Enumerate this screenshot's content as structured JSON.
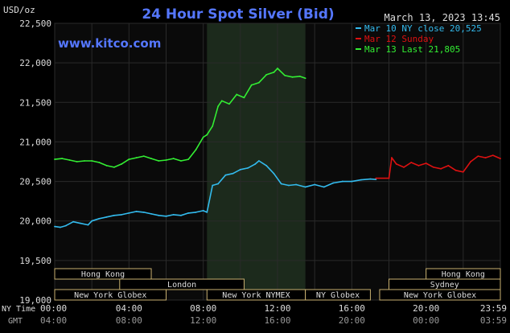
{
  "chart_data": {
    "type": "line",
    "title": "24 Hour Spot Silver (Bid)",
    "brand": "www.kitco.com",
    "timestamp": "March 13, 2023 13:45",
    "y_axis_label": "USD/oz",
    "ylim": [
      19.0,
      22.5
    ],
    "xlim": [
      0,
      24
    ],
    "grid": true,
    "legend_position": "top-right",
    "y_ticks": [
      {
        "value": 22.5,
        "label": "22,500"
      },
      {
        "value": 22.0,
        "label": "22,000"
      },
      {
        "value": 21.5,
        "label": "21,500"
      },
      {
        "value": 21.0,
        "label": "21,000"
      },
      {
        "value": 20.5,
        "label": "20,500"
      },
      {
        "value": 20.0,
        "label": "20,000"
      },
      {
        "value": 19.5,
        "label": "19,500"
      },
      {
        "value": 19.0,
        "label": "19,000"
      }
    ],
    "x_ticks_ny": [
      {
        "value": 0,
        "label": "00:00"
      },
      {
        "value": 4,
        "label": "04:00"
      },
      {
        "value": 8,
        "label": "08:00"
      },
      {
        "value": 12,
        "label": "12:00"
      },
      {
        "value": 16,
        "label": "16:00"
      },
      {
        "value": 20,
        "label": "20:00"
      },
      {
        "value": 23.98,
        "label": "23:59"
      }
    ],
    "x_ticks_gmt": [
      {
        "value": 0,
        "label": "04:00"
      },
      {
        "value": 4,
        "label": "08:00"
      },
      {
        "value": 8,
        "label": "12:00"
      },
      {
        "value": 12,
        "label": "16:00"
      },
      {
        "value": 16,
        "label": "20:00"
      },
      {
        "value": 20,
        "label": "00:00"
      },
      {
        "value": 23.98,
        "label": "03:59"
      }
    ],
    "x_row_labels": {
      "ny": "NY Time",
      "gmt": "GMT"
    },
    "highlight_band": {
      "from": 8.2,
      "to": 13.5
    },
    "sessions": [
      {
        "label": "Hong Kong",
        "from": 0,
        "to": 5.2,
        "row": 0
      },
      {
        "label": "London",
        "from": 3.5,
        "to": 10.2,
        "row": 1
      },
      {
        "label": "New York Globex",
        "from": 0,
        "to": 6.0,
        "row": 2
      },
      {
        "label": "New York NYMEX",
        "from": 8.2,
        "to": 13.5,
        "row": 2
      },
      {
        "label": "NY Globex",
        "from": 13.5,
        "to": 17.0,
        "row": 2
      },
      {
        "label": "Hong Kong",
        "from": 20.0,
        "to": 24.0,
        "row": 0
      },
      {
        "label": "Sydney",
        "from": 18.0,
        "to": 24.0,
        "row": 1
      },
      {
        "label": "New York Globex",
        "from": 17.5,
        "to": 24.0,
        "row": 2
      }
    ],
    "series": [
      {
        "name": "Mar 10 NY close 20,525",
        "color": "#33bbee",
        "x": [
          0,
          0.3,
          0.6,
          1.0,
          1.4,
          1.8,
          2.0,
          2.4,
          2.8,
          3.2,
          3.6,
          4.0,
          4.4,
          4.8,
          5.2,
          5.6,
          6.0,
          6.4,
          6.8,
          7.2,
          7.6,
          8.0,
          8.2,
          8.5,
          8.8,
          9.2,
          9.6,
          10.0,
          10.4,
          10.8,
          11.0,
          11.4,
          11.8,
          12.2,
          12.6,
          13.0,
          13.5,
          14.0,
          14.5,
          15.0,
          15.5,
          16.0,
          16.5,
          17.0,
          17.3
        ],
        "y": [
          19.93,
          19.92,
          19.94,
          19.99,
          19.97,
          19.95,
          20.0,
          20.03,
          20.05,
          20.07,
          20.08,
          20.1,
          20.12,
          20.11,
          20.09,
          20.07,
          20.06,
          20.08,
          20.07,
          20.1,
          20.11,
          20.13,
          20.11,
          20.45,
          20.47,
          20.58,
          20.6,
          20.65,
          20.67,
          20.72,
          20.76,
          20.7,
          20.6,
          20.47,
          20.45,
          20.46,
          20.43,
          20.46,
          20.43,
          20.48,
          20.5,
          20.5,
          20.52,
          20.53,
          20.525
        ]
      },
      {
        "name": "Mar 12 Sunday",
        "color": "#dd1111",
        "x": [
          17.3,
          18.0,
          18.15,
          18.4,
          18.8,
          19.2,
          19.6,
          20.0,
          20.4,
          20.8,
          21.2,
          21.6,
          22.0,
          22.4,
          22.8,
          23.2,
          23.6,
          24.0
        ],
        "y": [
          20.54,
          20.54,
          20.8,
          20.72,
          20.68,
          20.74,
          20.7,
          20.73,
          20.68,
          20.66,
          20.7,
          20.64,
          20.62,
          20.75,
          20.82,
          20.8,
          20.83,
          20.79
        ]
      },
      {
        "name": "Mar 13 Last 21,805",
        "color": "#33ee33",
        "x": [
          0,
          0.4,
          0.8,
          1.2,
          1.6,
          2.0,
          2.4,
          2.8,
          3.2,
          3.6,
          4.0,
          4.4,
          4.8,
          5.2,
          5.6,
          6.0,
          6.4,
          6.8,
          7.2,
          7.6,
          8.0,
          8.2,
          8.5,
          8.8,
          9.0,
          9.4,
          9.8,
          10.2,
          10.6,
          11.0,
          11.4,
          11.8,
          12.0,
          12.4,
          12.8,
          13.2,
          13.5
        ],
        "y": [
          20.78,
          20.79,
          20.77,
          20.75,
          20.76,
          20.76,
          20.74,
          20.7,
          20.68,
          20.72,
          20.78,
          20.8,
          20.82,
          20.79,
          20.76,
          20.77,
          20.79,
          20.76,
          20.78,
          20.9,
          21.06,
          21.09,
          21.2,
          21.45,
          21.52,
          21.48,
          21.6,
          21.56,
          21.72,
          21.75,
          21.85,
          21.88,
          21.93,
          21.84,
          21.82,
          21.83,
          21.805
        ]
      }
    ],
    "colors": {
      "background": "#000000",
      "plot_bg": "#0a0a0a",
      "band_bg": "#1c2a1c",
      "grid": "#2a2a2a",
      "title": "#5577ff",
      "brand": "#5577ff",
      "axis_text": "#dddddd",
      "session_box": "#c8b070"
    }
  }
}
